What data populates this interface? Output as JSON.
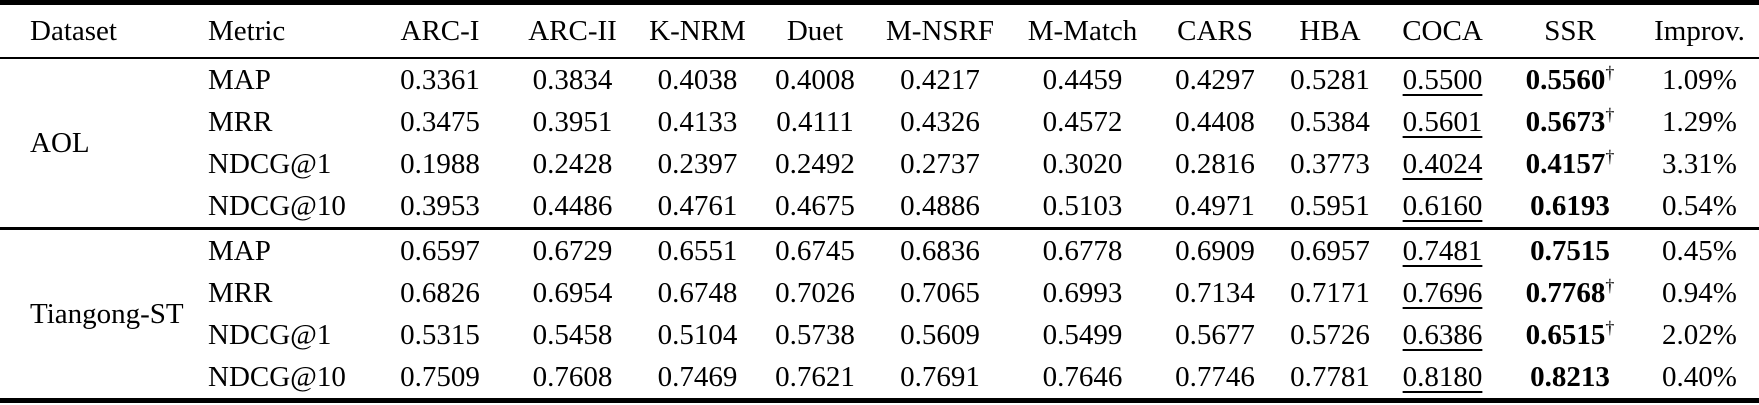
{
  "table": {
    "columns": [
      "Dataset",
      "Metric",
      "ARC-I",
      "ARC-II",
      "K-NRM",
      "Duet",
      "M-NSRF",
      "M-Match",
      "CARS",
      "HBA",
      "COCA",
      "SSR",
      "Improv."
    ],
    "styles": {
      "coca_style": "underline-second-best",
      "ssr_style": "bold-best",
      "dagger_meaning_symbol": "†"
    },
    "groups": [
      {
        "dataset": "AOL",
        "rows": [
          {
            "metric": "MAP",
            "cells": [
              "0.3361",
              "0.3834",
              "0.4038",
              "0.4008",
              "0.4217",
              "0.4459",
              "0.4297",
              "0.5281"
            ],
            "coca": "0.5500",
            "ssr": "0.5560",
            "dagger": "†",
            "improv": "1.09%"
          },
          {
            "metric": "MRR",
            "cells": [
              "0.3475",
              "0.3951",
              "0.4133",
              "0.4111",
              "0.4326",
              "0.4572",
              "0.4408",
              "0.5384"
            ],
            "coca": "0.5601",
            "ssr": "0.5673",
            "dagger": "†",
            "improv": "1.29%"
          },
          {
            "metric": "NDCG@1",
            "cells": [
              "0.1988",
              "0.2428",
              "0.2397",
              "0.2492",
              "0.2737",
              "0.3020",
              "0.2816",
              "0.3773"
            ],
            "coca": "0.4024",
            "ssr": "0.4157",
            "dagger": "†",
            "improv": "3.31%"
          },
          {
            "metric": "NDCG@10",
            "cells": [
              "0.3953",
              "0.4486",
              "0.4761",
              "0.4675",
              "0.4886",
              "0.5103",
              "0.4971",
              "0.5951"
            ],
            "coca": "0.6160",
            "ssr": "0.6193",
            "dagger": "",
            "improv": "0.54%"
          }
        ]
      },
      {
        "dataset": "Tiangong-ST",
        "rows": [
          {
            "metric": "MAP",
            "cells": [
              "0.6597",
              "0.6729",
              "0.6551",
              "0.6745",
              "0.6836",
              "0.6778",
              "0.6909",
              "0.6957"
            ],
            "coca": "0.7481",
            "ssr": "0.7515",
            "dagger": "",
            "improv": "0.45%"
          },
          {
            "metric": "MRR",
            "cells": [
              "0.6826",
              "0.6954",
              "0.6748",
              "0.7026",
              "0.7065",
              "0.6993",
              "0.7134",
              "0.7171"
            ],
            "coca": "0.7696",
            "ssr": "0.7768",
            "dagger": "†",
            "improv": "0.94%"
          },
          {
            "metric": "NDCG@1",
            "cells": [
              "0.5315",
              "0.5458",
              "0.5104",
              "0.5738",
              "0.5609",
              "0.5499",
              "0.5677",
              "0.5726"
            ],
            "coca": "0.6386",
            "ssr": "0.6515",
            "dagger": "†",
            "improv": "2.02%"
          },
          {
            "metric": "NDCG@10",
            "cells": [
              "0.7509",
              "0.7608",
              "0.7469",
              "0.7621",
              "0.7691",
              "0.7646",
              "0.7746",
              "0.7781"
            ],
            "coca": "0.8180",
            "ssr": "0.8213",
            "dagger": "",
            "improv": "0.40%"
          }
        ]
      }
    ]
  }
}
